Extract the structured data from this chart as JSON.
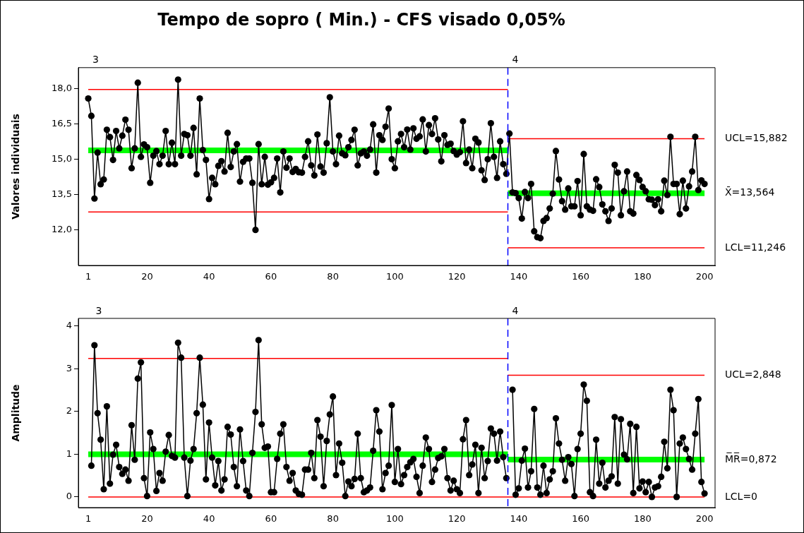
{
  "chart_data": [
    {
      "type": "line",
      "title": "Tempo de sopro ( Min.) - CFS visado 0,05%",
      "ylabel": "Valores individuais",
      "marker": "circle",
      "grid": false,
      "legend": false,
      "x": [
        1,
        2,
        3,
        4,
        5,
        6,
        7,
        8,
        9,
        10,
        11,
        12,
        13,
        14,
        15,
        16,
        17,
        18,
        19,
        20,
        21,
        22,
        23,
        24,
        25,
        26,
        27,
        28,
        29,
        30,
        31,
        32,
        33,
        34,
        35,
        36,
        37,
        38,
        39,
        40,
        41,
        42,
        43,
        44,
        45,
        46,
        47,
        48,
        49,
        50,
        51,
        52,
        53,
        54,
        55,
        56,
        57,
        58,
        59,
        60,
        61,
        62,
        63,
        64,
        65,
        66,
        67,
        68,
        69,
        70,
        71,
        72,
        73,
        74,
        75,
        76,
        77,
        78,
        79,
        80,
        81,
        82,
        83,
        84,
        85,
        86,
        87,
        88,
        89,
        90,
        91,
        92,
        93,
        94,
        95,
        96,
        97,
        98,
        99,
        100,
        101,
        102,
        103,
        104,
        105,
        106,
        107,
        108,
        109,
        110,
        111,
        112,
        113,
        114,
        115,
        116,
        117,
        118,
        119,
        120,
        121,
        122,
        123,
        124,
        125,
        126,
        127,
        128,
        129,
        130,
        131,
        132,
        133,
        134,
        135,
        136,
        137,
        138,
        139,
        140,
        141,
        142,
        143,
        144,
        145,
        146,
        147,
        148,
        149,
        150,
        151,
        152,
        153,
        154,
        155,
        156,
        157,
        158,
        159,
        160,
        161,
        162,
        163,
        164,
        165,
        166,
        167,
        168,
        169,
        170,
        171,
        172,
        173,
        174,
        175,
        176,
        177,
        178,
        179,
        180,
        181,
        182,
        183,
        184,
        185,
        186,
        187,
        188,
        189,
        190,
        191,
        192,
        193,
        194,
        195,
        196,
        197,
        198,
        199,
        200
      ],
      "xlim": [
        -2.2,
        203.4
      ],
      "xticks": [
        1,
        20,
        40,
        60,
        80,
        100,
        120,
        140,
        160,
        180,
        200
      ],
      "ylim": [
        10.5,
        18.9
      ],
      "yticks": [
        {
          "value": 12,
          "label": "12,0"
        },
        {
          "value": 13.5,
          "label": "13,5"
        },
        {
          "value": 15,
          "label": "15,0"
        },
        {
          "value": 16.5,
          "label": "16,5"
        },
        {
          "value": 18,
          "label": "18,0"
        }
      ],
      "series": [
        {
          "color": "#000000",
          "values": [
            17.59,
            16.85,
            13.34,
            15.29,
            13.95,
            14.15,
            16.26,
            15.95,
            14.98,
            16.21,
            15.47,
            16.01,
            16.69,
            16.26,
            14.63,
            15.47,
            18.26,
            15.11,
            15.64,
            15.52,
            14.01,
            15.16,
            15.36,
            14.8,
            15.16,
            16.21,
            14.8,
            15.71,
            14.8,
            18.39,
            15.16,
            16.08,
            16.03,
            15.16,
            16.34,
            14.37,
            17.59,
            15.4,
            14.98,
            13.32,
            14.22,
            13.95,
            14.73,
            14.93,
            14.49,
            16.13,
            14.68,
            15.34,
            15.65,
            14.06,
            14.9,
            15.04,
            15.04,
            14.01,
            12.01,
            15.65,
            13.95,
            15.11,
            13.93,
            14.03,
            14.22,
            15.04,
            13.6,
            15.34,
            14.65,
            15.04,
            14.47,
            14.6,
            14.46,
            14.44,
            15.11,
            15.77,
            14.75,
            14.32,
            16.06,
            14.7,
            14.44,
            15.69,
            17.64,
            15.34,
            14.8,
            16.01,
            15.26,
            15.18,
            15.52,
            15.83,
            16.26,
            14.75,
            15.26,
            15.34,
            15.16,
            15.42,
            16.49,
            14.44,
            16.03,
            15.83,
            16.39,
            17.16,
            15.01,
            14.63,
            15.77,
            16.08,
            15.52,
            16.27,
            15.42,
            16.32,
            15.88,
            15.98,
            16.7,
            15.34,
            16.46,
            16.08,
            16.75,
            15.85,
            14.92,
            16.03,
            15.62,
            15.67,
            15.36,
            15.21,
            15.31,
            16.62,
            14.85,
            15.42,
            14.63,
            15.88,
            15.72,
            14.54,
            14.13,
            15.01,
            16.54,
            15.11,
            14.22,
            15.77,
            14.8,
            14.39,
            16.1,
            13.6,
            13.57,
            13.36,
            12.49,
            13.62,
            13.36,
            13.96,
            11.95,
            11.7,
            11.66,
            12.39,
            12.51,
            12.92,
            13.55,
            15.36,
            14.15,
            13.23,
            12.87,
            13.77,
            13.01,
            13.01,
            14.08,
            12.63,
            15.23,
            13.01,
            12.87,
            12.82,
            14.16,
            13.83,
            13.09,
            12.8,
            12.39,
            12.92,
            14.77,
            14.44,
            12.63,
            13.65,
            14.49,
            12.8,
            12.7,
            14.34,
            14.13,
            13.83,
            13.65,
            13.31,
            13.29,
            13.06,
            13.31,
            12.8,
            14.1,
            13.49,
            15.96,
            13.96,
            13.96,
            12.68,
            14.1,
            12.92,
            13.86,
            14.49,
            15.96,
            13.7,
            14.11,
            13.96
          ]
        },
        {
          "type": "line",
          "marker": "none",
          "color": "#00ff00",
          "x": [
            1,
            136.5
          ],
          "values": [
            15.39,
            15.39
          ]
        },
        {
          "type": "line",
          "marker": "none",
          "color": "#00ff00",
          "x": [
            136.5,
            200
          ],
          "values": [
            13.564,
            13.564
          ],
          "name": "X̄=13,564"
        },
        {
          "type": "line",
          "marker": "none",
          "color": "#ff0000",
          "x": [
            1,
            136.5
          ],
          "values": [
            17.97,
            17.97
          ]
        },
        {
          "type": "line",
          "marker": "none",
          "color": "#ff0000",
          "x": [
            1,
            136.5
          ],
          "values": [
            12.77,
            12.77
          ]
        },
        {
          "type": "line",
          "marker": "none",
          "color": "#ff0000",
          "x": [
            136.5,
            200
          ],
          "values": [
            15.882,
            15.882
          ],
          "name": "UCL=15,882"
        },
        {
          "type": "line",
          "marker": "none",
          "color": "#ff0000",
          "x": [
            136.5,
            200
          ],
          "values": [
            11.246,
            11.246
          ],
          "name": "LCL=11,246"
        }
      ],
      "ref_lines": [
        {
          "axis": "x",
          "value": 136.5,
          "color": "#0000ff",
          "line_style": "dashed"
        }
      ],
      "annotations": [
        "3",
        "4"
      ]
    },
    {
      "type": "line",
      "ylabel": "Amplitude",
      "marker": "circle",
      "grid": false,
      "legend": false,
      "x": [
        2,
        3,
        4,
        5,
        6,
        7,
        8,
        9,
        10,
        11,
        12,
        13,
        14,
        15,
        16,
        17,
        18,
        19,
        20,
        21,
        22,
        23,
        24,
        25,
        26,
        27,
        28,
        29,
        30,
        31,
        32,
        33,
        34,
        35,
        36,
        37,
        38,
        39,
        40,
        41,
        42,
        43,
        44,
        45,
        46,
        47,
        48,
        49,
        50,
        51,
        52,
        53,
        54,
        55,
        56,
        57,
        58,
        59,
        60,
        61,
        62,
        63,
        64,
        65,
        66,
        67,
        68,
        69,
        70,
        71,
        72,
        73,
        74,
        75,
        76,
        77,
        78,
        79,
        80,
        81,
        82,
        83,
        84,
        85,
        86,
        87,
        88,
        89,
        90,
        91,
        92,
        93,
        94,
        95,
        96,
        97,
        98,
        99,
        100,
        101,
        102,
        103,
        104,
        105,
        106,
        107,
        108,
        109,
        110,
        111,
        112,
        113,
        114,
        115,
        116,
        117,
        118,
        119,
        120,
        121,
        122,
        123,
        124,
        125,
        126,
        127,
        128,
        129,
        130,
        131,
        132,
        133,
        134,
        135,
        136,
        137,
        138,
        139,
        140,
        141,
        142,
        143,
        144,
        145,
        146,
        147,
        148,
        149,
        150,
        151,
        152,
        153,
        154,
        155,
        156,
        157,
        158,
        159,
        160,
        161,
        162,
        163,
        164,
        165,
        166,
        167,
        168,
        169,
        170,
        171,
        172,
        173,
        174,
        175,
        176,
        177,
        178,
        179,
        180,
        181,
        182,
        183,
        184,
        185,
        186,
        187,
        188,
        189,
        190,
        191,
        192,
        193,
        194,
        195,
        196,
        197,
        198,
        199,
        200
      ],
      "xlim": [
        -2.2,
        203.4
      ],
      "xticks": [
        1,
        20,
        40,
        60,
        80,
        100,
        120,
        140,
        160,
        180,
        200
      ],
      "ylim": [
        -0.25,
        4.18
      ],
      "yticks": [
        0,
        1,
        2,
        3,
        4
      ],
      "series": [
        {
          "color": "#000000",
          "values": [
            0.73,
            3.55,
            1.96,
            1.34,
            0.18,
            2.12,
            0.31,
            0.99,
            1.22,
            0.7,
            0.54,
            0.64,
            0.38,
            1.68,
            0.87,
            2.77,
            3.15,
            0.44,
            0.02,
            1.51,
            1.12,
            0.14,
            0.56,
            0.38,
            1.06,
            1.45,
            0.96,
            0.92,
            3.61,
            3.26,
            0.92,
            0.02,
            0.85,
            1.12,
            1.96,
            3.26,
            2.16,
            0.41,
            1.74,
            0.92,
            0.27,
            0.84,
            0.15,
            0.41,
            1.64,
            1.46,
            0.7,
            0.25,
            1.58,
            0.84,
            0.15,
            0.02,
            1.03,
            1.99,
            3.67,
            1.7,
            1.15,
            1.18,
            0.11,
            0.11,
            0.89,
            1.48,
            1.7,
            0.7,
            0.38,
            0.56,
            0.15,
            0.07,
            0.05,
            0.64,
            0.64,
            1.03,
            0.44,
            1.8,
            1.41,
            0.25,
            1.31,
            1.93,
            2.35,
            0.51,
            1.25,
            0.8,
            0.02,
            0.36,
            0.25,
            0.42,
            1.48,
            0.44,
            0.11,
            0.15,
            0.22,
            1.08,
            2.03,
            1.53,
            0.18,
            0.56,
            0.73,
            2.15,
            0.35,
            1.12,
            0.3,
            0.51,
            0.7,
            0.81,
            0.89,
            0.47,
            0.09,
            0.73,
            1.39,
            1.12,
            0.35,
            0.64,
            0.91,
            0.95,
            1.12,
            0.44,
            0.15,
            0.38,
            0.18,
            0.09,
            1.35,
            1.8,
            0.51,
            0.76,
            1.22,
            0.09,
            1.15,
            0.44,
            0.84,
            1.6,
            1.48,
            0.85,
            1.53,
            0.93,
            0.44,
            null,
            2.51,
            0.05,
            0.2,
            0.85,
            1.13,
            0.22,
            0.6,
            2.06,
            0.22,
            0.05,
            0.73,
            0.09,
            0.41,
            0.6,
            1.84,
            1.25,
            0.87,
            0.38,
            0.93,
            0.77,
            0.02,
            1.12,
            1.48,
            2.63,
            2.25,
            0.11,
            0.02,
            1.34,
            0.31,
            0.8,
            0.22,
            0.38,
            0.48,
            1.87,
            0.31,
            1.82,
            0.99,
            0.88,
            1.71,
            0.09,
            1.64,
            0.2,
            0.36,
            0.11,
            0.35,
            0.0,
            0.22,
            0.25,
            0.47,
            1.29,
            0.67,
            2.51,
            2.03,
            0.0,
            1.25,
            1.39,
            1.12,
            0.89,
            0.64,
            1.48,
            2.29,
            0.35,
            0.08
          ]
        },
        {
          "type": "line",
          "marker": "none",
          "color": "#00ff00",
          "x": [
            1,
            136.5
          ],
          "values": [
            1.0,
            1.0
          ]
        },
        {
          "type": "line",
          "marker": "none",
          "color": "#00ff00",
          "x": [
            136.5,
            200
          ],
          "values": [
            0.872,
            0.872
          ],
          "name": "M̅R̅=0,872"
        },
        {
          "type": "line",
          "marker": "none",
          "color": "#ff0000",
          "x": [
            1,
            136.5
          ],
          "values": [
            3.24,
            3.24
          ]
        },
        {
          "type": "line",
          "marker": "none",
          "color": "#ff0000",
          "x": [
            136.5,
            200
          ],
          "values": [
            2.848,
            2.848
          ],
          "name": "UCL=2,848"
        },
        {
          "type": "line",
          "marker": "none",
          "color": "#ff0000",
          "x": [
            1,
            200
          ],
          "values": [
            0,
            0
          ],
          "name": "LCL=0"
        }
      ],
      "ref_lines": [
        {
          "axis": "x",
          "value": 136.5,
          "color": "#0000ff",
          "line_style": "dashed"
        }
      ],
      "annotations": [
        "3",
        "4"
      ]
    }
  ]
}
